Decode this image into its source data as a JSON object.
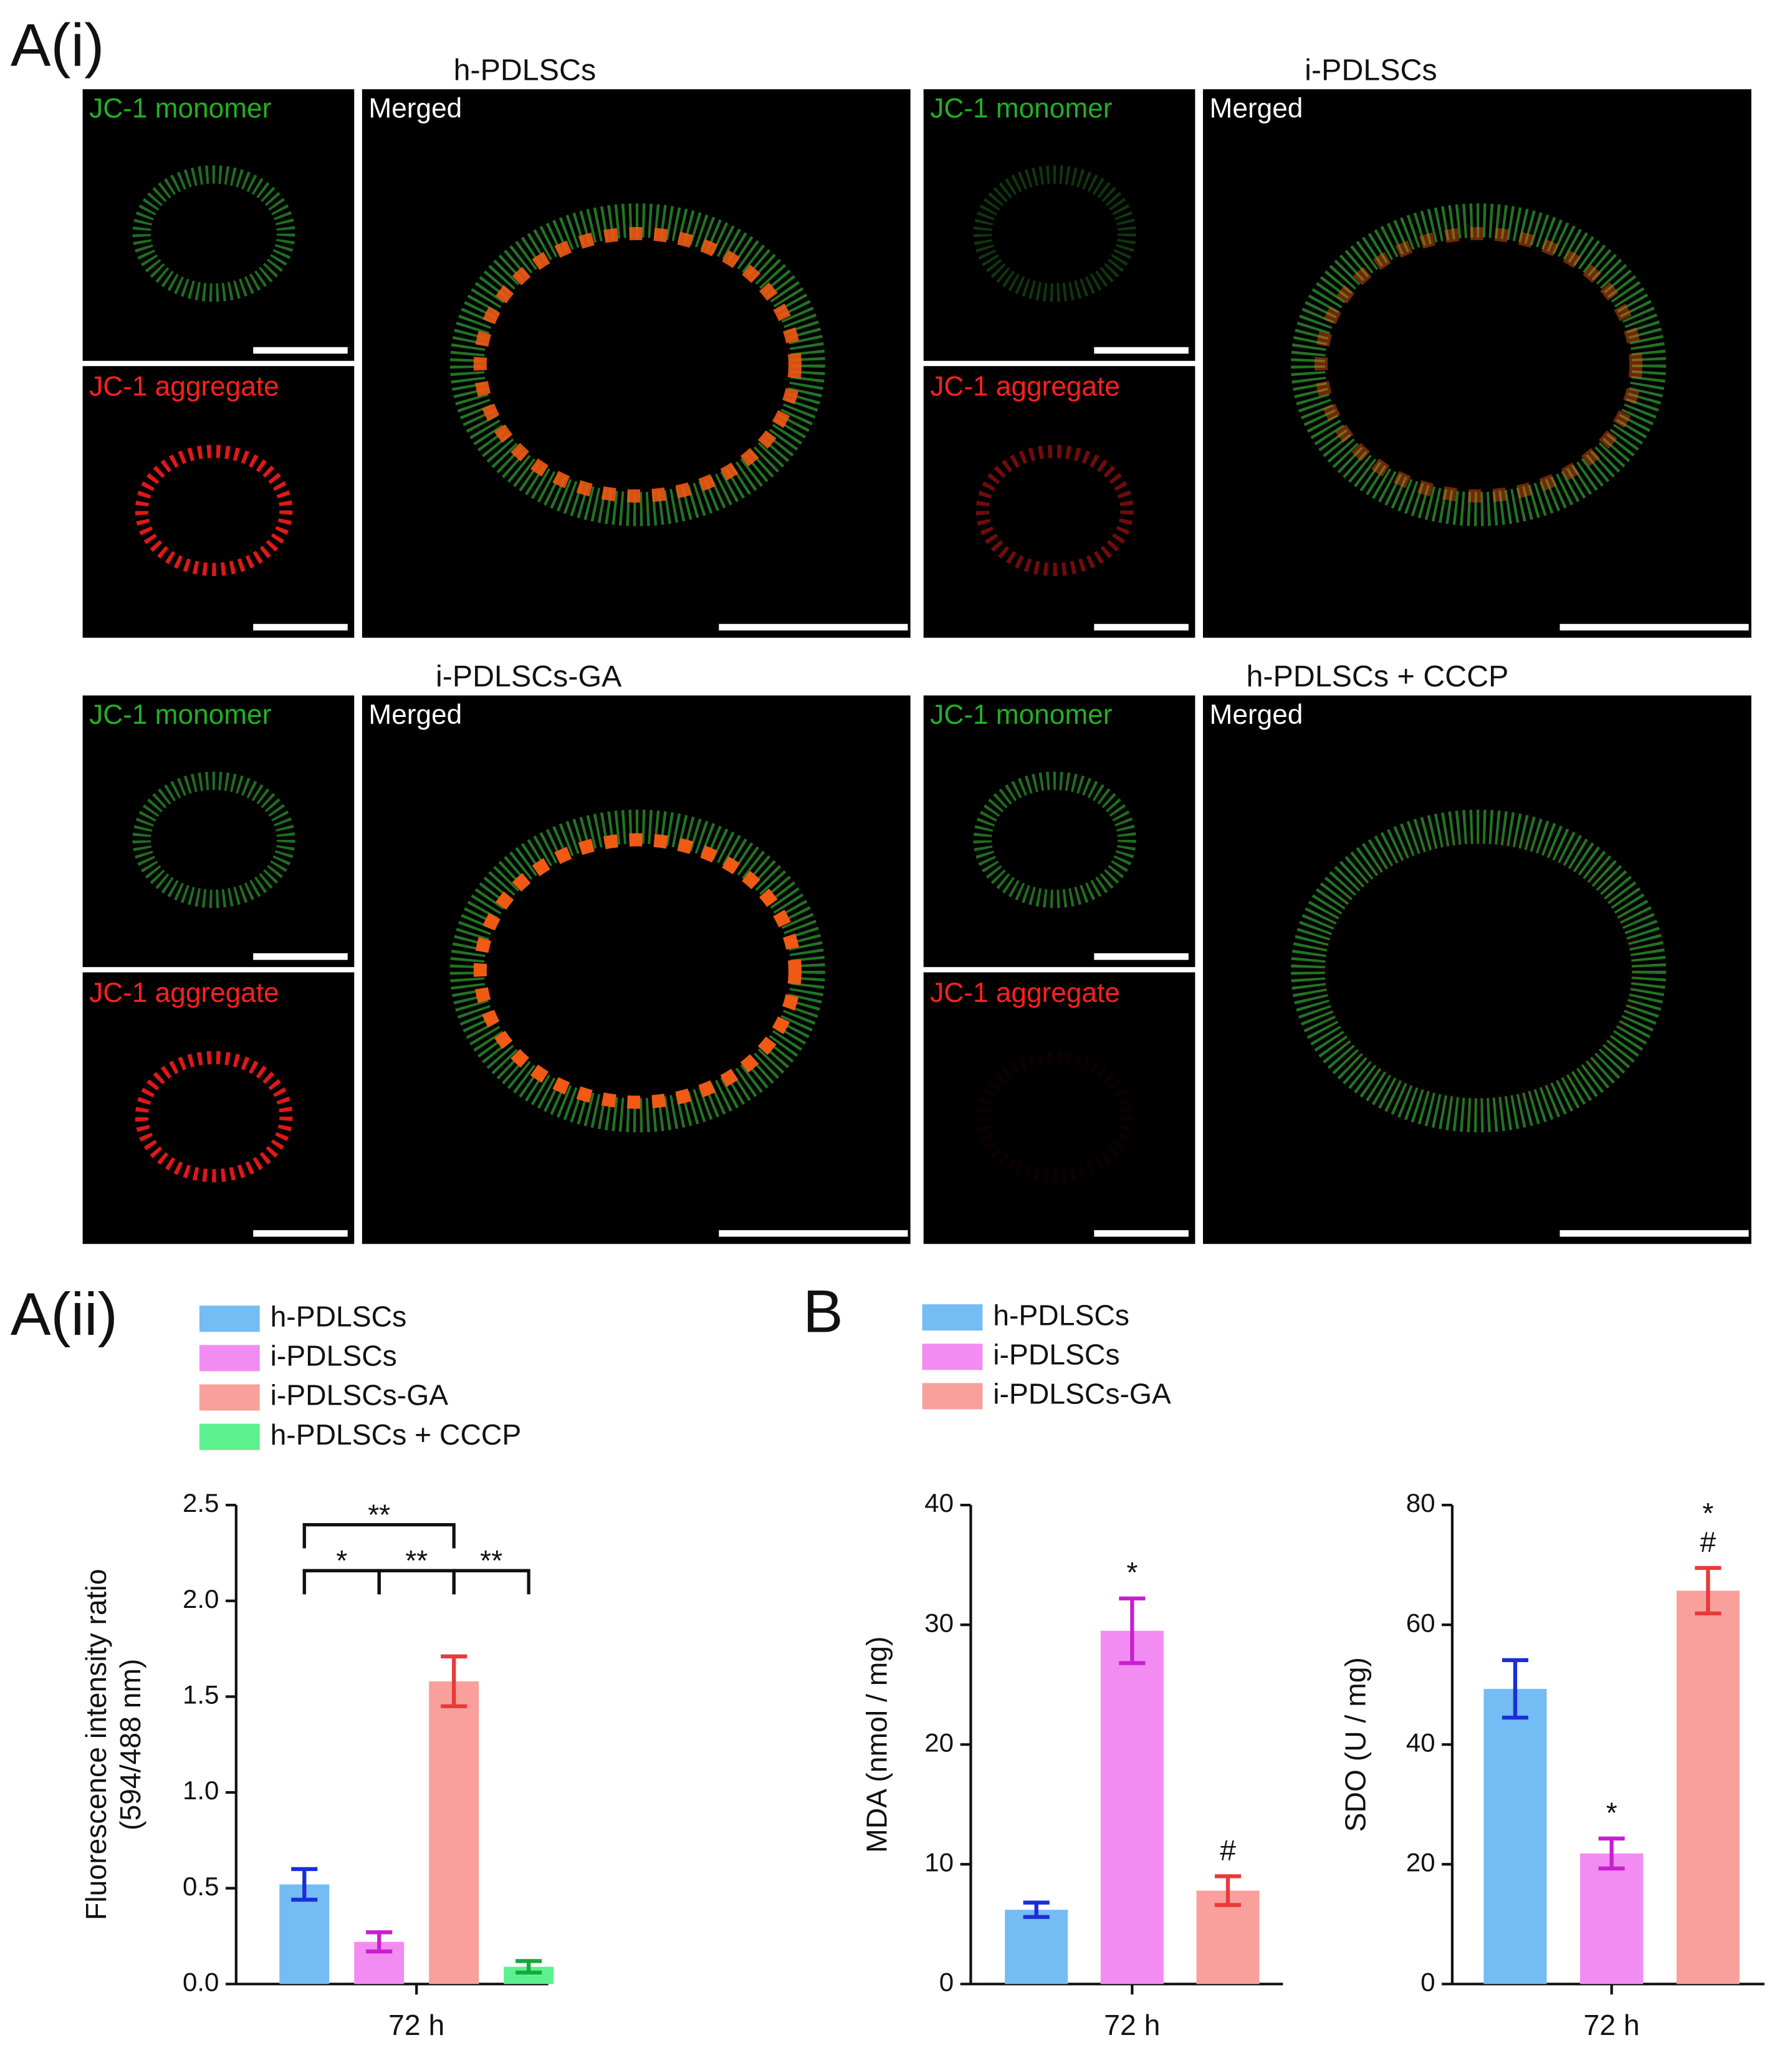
{
  "panel_labels": [
    "A(i)",
    "A(ii)",
    "B"
  ],
  "panels": [
    {
      "title": "h-PDLSCs",
      "monomer": "JC-1 monomer",
      "aggregate": "JC-1 aggregate",
      "merged": "Merged"
    },
    {
      "title": "i-PDLSCs",
      "monomer": "JC-1 monomer",
      "aggregate": "JC-1 aggregate",
      "merged": "Merged"
    },
    {
      "title": "i-PDLSCs-GA",
      "monomer": "JC-1 monomer",
      "aggregate": "JC-1 aggregate",
      "merged": "Merged"
    },
    {
      "title": "h-PDLSCs + CCCP",
      "monomer": "JC-1 monomer",
      "aggregate": "JC-1 aggregate",
      "merged": "Merged"
    }
  ],
  "chart_data": [
    {
      "type": "bar",
      "ylabel": [
        "Fluorescence intensity ratio",
        "(594/488 nm)"
      ],
      "categories": [
        "72 h"
      ],
      "ylim": [
        0,
        2.5
      ],
      "yticks": [
        {
          "value": 0,
          "label": "0.0"
        },
        0.5,
        {
          "value": 1,
          "label": "1.0"
        },
        1.5,
        {
          "value": 2,
          "label": "2.0"
        },
        2.5
      ],
      "series": [
        {
          "name": "h-PDLSCs",
          "color": "#74bcf4",
          "error_color": "#1a2fd6",
          "values": [
            0.52
          ],
          "errors": [
            0.08
          ]
        },
        {
          "name": "i-PDLSCs",
          "color": "#f28cf2",
          "error_color": "#c81ed0",
          "values": [
            0.22
          ],
          "errors": [
            0.05
          ]
        },
        {
          "name": "i-PDLSCs-GA",
          "color": "#f9a09c",
          "error_color": "#e83a3a",
          "values": [
            1.58
          ],
          "errors": [
            0.13
          ]
        },
        {
          "name": "h-PDLSCs + CCCP",
          "color": "#5df08e",
          "error_color": "#16a83d",
          "values": [
            0.09
          ],
          "errors": [
            0.03
          ]
        }
      ],
      "brackets": [
        {
          "from": 0,
          "to": 2,
          "label": "**"
        },
        {
          "from": 0,
          "to": 1,
          "label": "*"
        },
        {
          "from": 1,
          "to": 2,
          "label": "**"
        },
        {
          "from": 2,
          "to": 3,
          "label": "**"
        }
      ]
    },
    {
      "type": "bar",
      "ylabel": [
        "MDA (nmol / mg)"
      ],
      "categories": [
        "72 h"
      ],
      "ylim": [
        0,
        40
      ],
      "yticks": [
        0,
        10,
        20,
        30,
        40
      ],
      "series": [
        {
          "name": "h-PDLSCs",
          "color": "#74bcf4",
          "error_color": "#1a2fd6",
          "values": [
            6.2
          ],
          "errors": [
            0.6
          ]
        },
        {
          "name": "i-PDLSCs",
          "color": "#f28cf2",
          "error_color": "#c81ed0",
          "values": [
            29.5
          ],
          "errors": [
            2.7
          ],
          "annotation": [
            "*"
          ]
        },
        {
          "name": "i-PDLSCs-GA",
          "color": "#f9a09c",
          "error_color": "#e83a3a",
          "values": [
            7.8
          ],
          "errors": [
            1.2
          ],
          "annotation": [
            "#"
          ]
        }
      ]
    },
    {
      "type": "bar",
      "ylabel": [
        "SDO (U / mg)"
      ],
      "categories": [
        "72 h"
      ],
      "ylim": [
        0,
        80
      ],
      "yticks": [
        0,
        20,
        40,
        60,
        80
      ],
      "series": [
        {
          "color": "#74bcf4",
          "error_color": "#1a2fd6",
          "values": [
            49.3
          ],
          "errors": [
            4.8
          ]
        },
        {
          "color": "#f28cf2",
          "error_color": "#c81ed0",
          "values": [
            21.8
          ],
          "errors": [
            2.5
          ],
          "annotation": [
            "*"
          ]
        },
        {
          "color": "#f9a09c",
          "error_color": "#e83a3a",
          "values": [
            65.7
          ],
          "errors": [
            3.8
          ],
          "annotation": [
            "*",
            "#"
          ]
        }
      ]
    }
  ]
}
